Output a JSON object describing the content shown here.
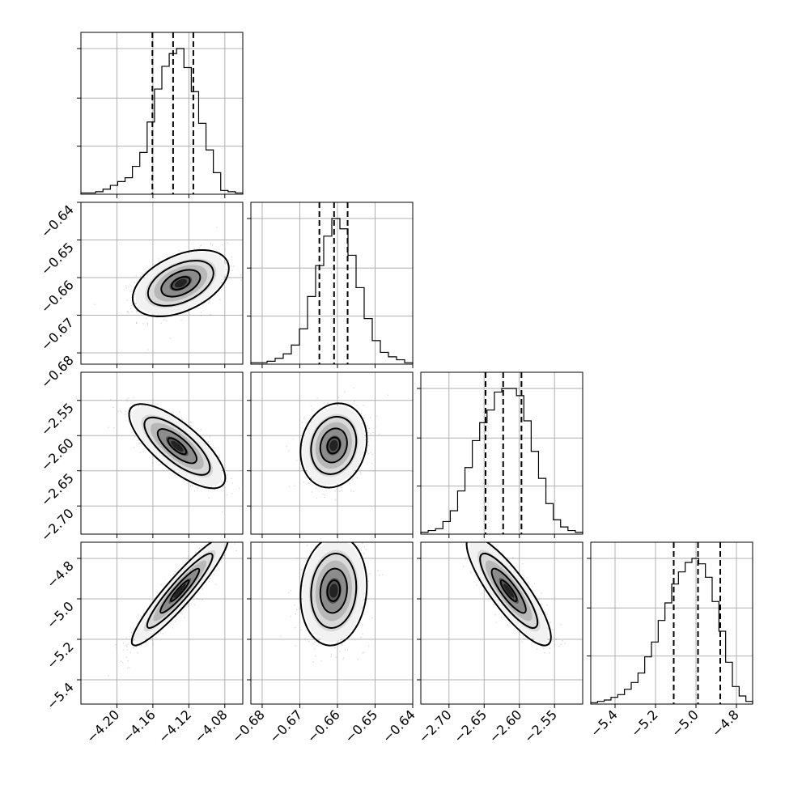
{
  "chart_data": {
    "type": "scatter",
    "kind": "corner-plot",
    "grid": true,
    "parameters": [
      {
        "range": [
          -4.24,
          -4.06
        ],
        "ticks": [
          -4.2,
          -4.16,
          -4.12,
          -4.08
        ],
        "tick_labels": [
          "−4.20",
          "−4.16",
          "−4.12",
          "−4.08"
        ],
        "quantiles": [
          -4.1605,
          -4.1375,
          -4.115
        ]
      },
      {
        "range": [
          -0.683,
          -0.64
        ],
        "ticks": [
          -0.68,
          -0.67,
          -0.66,
          -0.65,
          -0.64
        ],
        "tick_labels": [
          "−0.68",
          "−0.67",
          "−0.66",
          "−0.65",
          "−0.64"
        ],
        "quantiles": [
          -0.6648,
          -0.6609,
          -0.6573
        ]
      },
      {
        "range": [
          -2.74,
          -2.51
        ],
        "ticks": [
          -2.7,
          -2.65,
          -2.6,
          -2.55
        ],
        "tick_labels": [
          "−2.70",
          "−2.65",
          "−2.60",
          "−2.55"
        ],
        "quantiles": [
          -2.648,
          -2.623,
          -2.597
        ]
      },
      {
        "range": [
          -5.52,
          -4.72
        ],
        "ticks": [
          -5.4,
          -5.2,
          -5.0,
          -4.8
        ],
        "tick_labels": [
          "−5.4",
          "−5.2",
          "−5.0",
          "−4.8"
        ],
        "quantiles": [
          -5.11,
          -4.99,
          -4.88
        ]
      }
    ],
    "marginals": [
      [
        1,
        1,
        2,
        4,
        7,
        10,
        13,
        22,
        33,
        57,
        83,
        101,
        111,
        115,
        100,
        81,
        56,
        35,
        17,
        3,
        2,
        1
      ],
      [
        1,
        1,
        2,
        4,
        7,
        13,
        24,
        46,
        67,
        87,
        99,
        92,
        74,
        52,
        31,
        16,
        8,
        5,
        3,
        1
      ],
      [
        1,
        2,
        3,
        7,
        13,
        24,
        37,
        52,
        62,
        69,
        79,
        81,
        81,
        77,
        63,
        46,
        31,
        17,
        8,
        4,
        2,
        1
      ],
      [
        1,
        2,
        3,
        5,
        7,
        11,
        16,
        23,
        35,
        46,
        62,
        75,
        89,
        98,
        105,
        108,
        104,
        94,
        76,
        54,
        31,
        13,
        6,
        2
      ]
    ],
    "correlations": {
      "1-0": 0.45,
      "2-0": -0.75,
      "2-1": 0.15,
      "3-0": 0.93,
      "3-1": 0.1,
      "3-2": -0.85
    },
    "density_centers": {
      "1-0": [
        -4.129,
        -0.6615
      ],
      "2-0": [
        -4.133,
        -2.615
      ],
      "2-1": [
        -0.661,
        -2.614
      ],
      "3-0": [
        -4.13,
        -4.96
      ],
      "3-1": [
        -0.661,
        -4.96
      ],
      "3-2": [
        -2.615,
        -4.96
      ]
    }
  }
}
